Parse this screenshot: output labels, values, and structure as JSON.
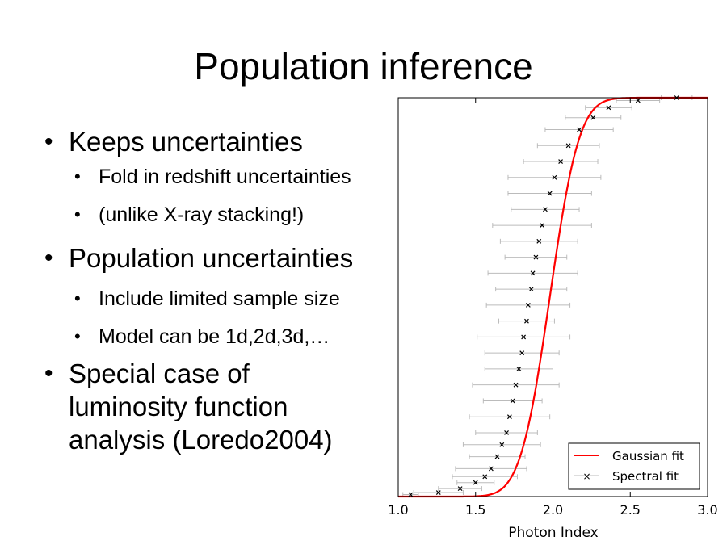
{
  "slide": {
    "title": "Population inference",
    "bullets": {
      "b1": "Keeps uncertainties",
      "b1_1": "Fold in redshift uncertainties",
      "b1_2": "(unlike X-ray stacking!)",
      "b2": "Population uncertainties",
      "b2_1": "Include limited sample size",
      "b2_2": "Model can be 1d,2d,3d,…",
      "b3_line1": "Special case of",
      "b3_line2": "luminosity function",
      "b3_line3": "analysis (Loredo2004)"
    }
  },
  "chart_data": {
    "type": "scatter",
    "xlabel": "Photon Index",
    "ylabel": "",
    "xlim": [
      1.0,
      3.0
    ],
    "ylim": [
      0,
      1
    ],
    "xticks": [
      "1.0",
      "1.5",
      "2.0",
      "2.5",
      "3.0"
    ],
    "grid": false,
    "legend_position": "bottom-right",
    "series": [
      {
        "name": "Gaussian fit",
        "kind": "line",
        "color": "#ff0000",
        "mean": 1.98,
        "sigma": 0.15
      },
      {
        "name": "Spectral fit",
        "kind": "points-with-xerr",
        "color": "#000000",
        "errbar_color": "#bbbbbb",
        "points": [
          {
            "x": 1.08,
            "y": 0.005,
            "err": 0.05
          },
          {
            "x": 1.26,
            "y": 0.01,
            "err": 0.16
          },
          {
            "x": 1.4,
            "y": 0.02,
            "err": 0.14
          },
          {
            "x": 1.5,
            "y": 0.035,
            "err": 0.12
          },
          {
            "x": 1.56,
            "y": 0.05,
            "err": 0.21
          },
          {
            "x": 1.6,
            "y": 0.07,
            "err": 0.23
          },
          {
            "x": 1.64,
            "y": 0.1,
            "err": 0.18
          },
          {
            "x": 1.67,
            "y": 0.13,
            "err": 0.25
          },
          {
            "x": 1.7,
            "y": 0.16,
            "err": 0.2
          },
          {
            "x": 1.72,
            "y": 0.2,
            "err": 0.26
          },
          {
            "x": 1.74,
            "y": 0.24,
            "err": 0.19
          },
          {
            "x": 1.76,
            "y": 0.28,
            "err": 0.28
          },
          {
            "x": 1.78,
            "y": 0.32,
            "err": 0.22
          },
          {
            "x": 1.8,
            "y": 0.36,
            "err": 0.24
          },
          {
            "x": 1.81,
            "y": 0.4,
            "err": 0.3
          },
          {
            "x": 1.83,
            "y": 0.44,
            "err": 0.18
          },
          {
            "x": 1.84,
            "y": 0.48,
            "err": 0.27
          },
          {
            "x": 1.86,
            "y": 0.52,
            "err": 0.23
          },
          {
            "x": 1.87,
            "y": 0.56,
            "err": 0.29
          },
          {
            "x": 1.89,
            "y": 0.6,
            "err": 0.2
          },
          {
            "x": 1.91,
            "y": 0.64,
            "err": 0.25
          },
          {
            "x": 1.93,
            "y": 0.68,
            "err": 0.32
          },
          {
            "x": 1.95,
            "y": 0.72,
            "err": 0.22
          },
          {
            "x": 1.98,
            "y": 0.76,
            "err": 0.27
          },
          {
            "x": 2.01,
            "y": 0.8,
            "err": 0.3
          },
          {
            "x": 2.05,
            "y": 0.84,
            "err": 0.24
          },
          {
            "x": 2.1,
            "y": 0.88,
            "err": 0.2
          },
          {
            "x": 2.17,
            "y": 0.92,
            "err": 0.22
          },
          {
            "x": 2.26,
            "y": 0.95,
            "err": 0.18
          },
          {
            "x": 2.36,
            "y": 0.975,
            "err": 0.15
          },
          {
            "x": 2.55,
            "y": 0.993,
            "err": 0.14
          },
          {
            "x": 2.8,
            "y": 1.0,
            "err": 0.1
          }
        ]
      }
    ]
  }
}
